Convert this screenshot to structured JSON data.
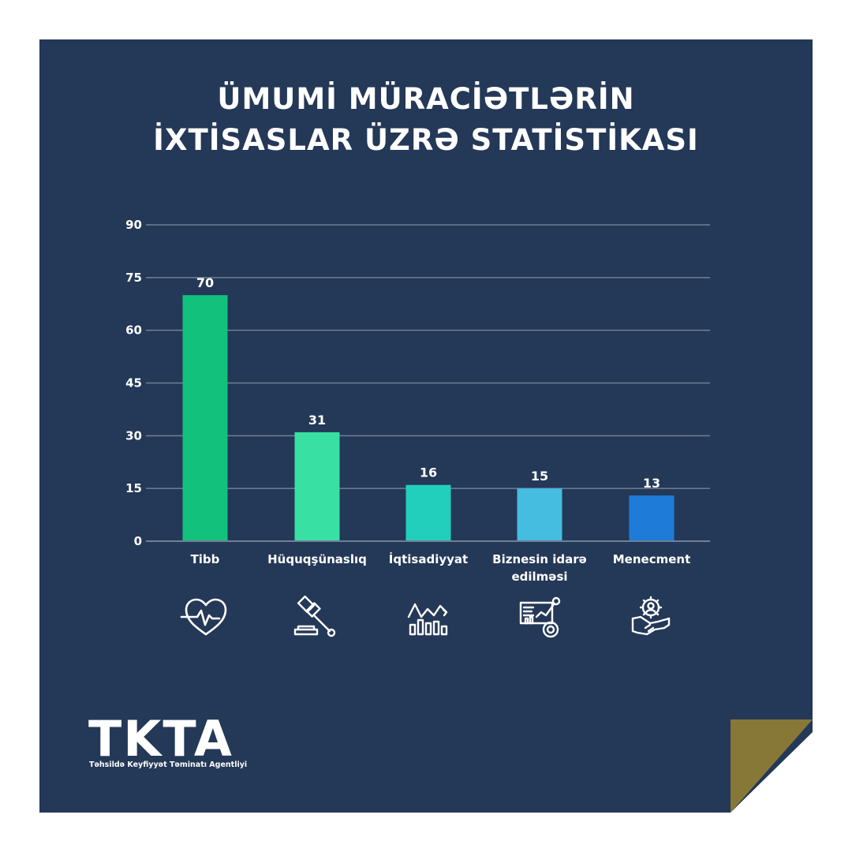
{
  "title_lines": [
    "ÜMUMİ MÜRACİƏTLƏRİN",
    "İXTİSASLAR ÜZRƏ STATİSTİKASI"
  ],
  "colors": {
    "background": "#243857",
    "fold": "#877838",
    "grid": "#6f7f96",
    "text": "#ffffff"
  },
  "chart_data": {
    "type": "bar",
    "categories": [
      [
        "Tibb"
      ],
      [
        "Hüquqşünaslıq"
      ],
      [
        "İqtisadiyyat"
      ],
      [
        "Biznesin idarə",
        "edilməsi"
      ],
      [
        "Menecment"
      ]
    ],
    "values": [
      70,
      31,
      16,
      15,
      13
    ],
    "bar_colors": [
      "#12c27c",
      "#39e0a3",
      "#22cfbd",
      "#45bde0",
      "#1f7bd8"
    ],
    "yticks": [
      0,
      15,
      30,
      45,
      60,
      75,
      90
    ],
    "ylim": [
      0,
      90
    ],
    "grid": true
  },
  "icons": [
    "heartbeat-icon",
    "gavel-icon",
    "economy-chart-icon",
    "business-dashboard-icon",
    "management-handshake-icon"
  ],
  "logo": {
    "text": "TKTA",
    "subtitle": "Təhsildə Keyfiyyət Təminatı Agentliyi"
  }
}
